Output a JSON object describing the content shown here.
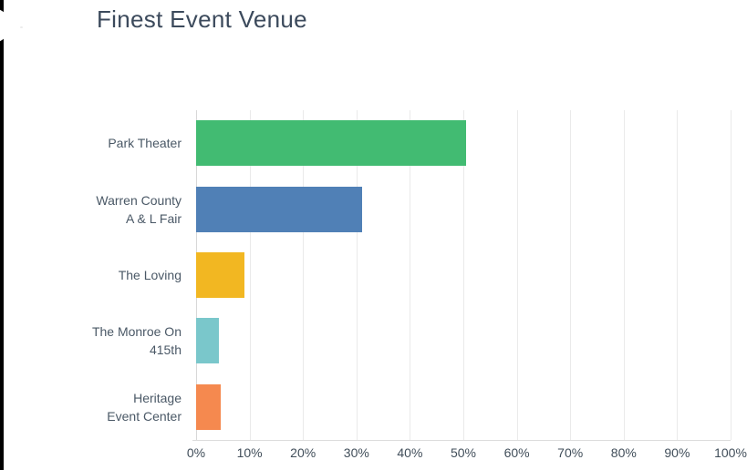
{
  "page": {
    "background": "#ffffff"
  },
  "decor": {
    "left_strip_color": "#000000",
    "notch_color": "#ffffff"
  },
  "colors": {
    "title_text": "#3c4a5c",
    "category_label_text": "#4a5866",
    "axis_label_text": "#414e5a",
    "gridline": "#eaeaea",
    "zero_line": "#d8d8d8",
    "axis_line": "#dcdcdc"
  },
  "chart_data": {
    "type": "bar",
    "orientation": "horizontal",
    "title": "Finest Event Venue",
    "categories": [
      "Park Theater",
      "Warren County A & L Fair",
      "The Loving",
      "The Monroe On 415th",
      "Heritage Event Center"
    ],
    "category_label_lines": [
      [
        "Park Theater"
      ],
      [
        "Warren County",
        "A & L Fair"
      ],
      [
        "The Loving"
      ],
      [
        "The Monroe On",
        "415th"
      ],
      [
        "Heritage",
        "Event Center"
      ]
    ],
    "values": [
      50.5,
      31.1,
      9.0,
      4.3,
      4.6
    ],
    "bar_colors": [
      "#42bb72",
      "#5080b6",
      "#f2b722",
      "#7ac7cb",
      "#f5894f"
    ],
    "x_tick_labels": [
      "0%",
      "10%",
      "20%",
      "30%",
      "40%",
      "50%",
      "60%",
      "70%",
      "80%",
      "90%",
      "100%"
    ],
    "xlim": [
      0,
      100
    ],
    "xlabel": "",
    "ylabel": "",
    "grid": "vertical-only",
    "legend": "none"
  }
}
